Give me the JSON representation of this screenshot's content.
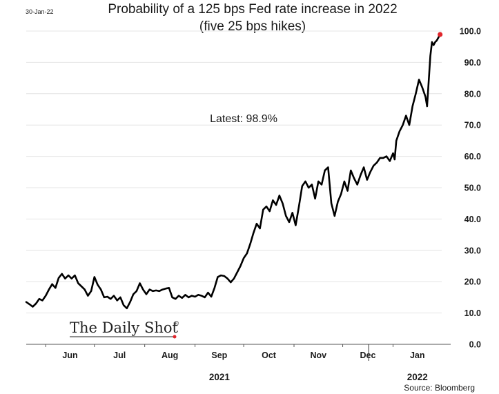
{
  "date_stamp": "30-Jan-22",
  "watermark": "The Daily Shot",
  "watermark_mark": "®",
  "source": "Source: Bloomberg",
  "colors": {
    "line": "#000000",
    "grid": "#e4e4e4",
    "latest_dot": "#e0262c",
    "axis": "#555555"
  },
  "chart_data": {
    "type": "line",
    "title": "Probability of a 125 bps Fed rate increase in 2022",
    "subtitle": "(five 25 bps hikes)",
    "annotation": "Latest:  98.9%",
    "latest_value": 98.9,
    "xlabel": "",
    "ylabel": "",
    "ylim": [
      0,
      100
    ],
    "yticks": [
      0,
      10,
      20,
      30,
      40,
      50,
      60,
      70,
      80,
      90,
      100
    ],
    "ytick_labels": [
      "0.0",
      "10.0",
      "20.0",
      "30.0",
      "40.0",
      "50.0",
      "60.0",
      "70.0",
      "80.0",
      "90.0",
      "100.0"
    ],
    "grid": true,
    "y_axis_position": "right",
    "xlim": [
      "2021-05-20",
      "2022-01-31"
    ],
    "month_ticks": [
      {
        "label": "Jun",
        "date": "2021-06-01"
      },
      {
        "label": "Jul",
        "date": "2021-07-01"
      },
      {
        "label": "Aug",
        "date": "2021-08-01"
      },
      {
        "label": "Sep",
        "date": "2021-09-01"
      },
      {
        "label": "Oct",
        "date": "2021-10-01"
      },
      {
        "label": "Nov",
        "date": "2021-11-01"
      },
      {
        "label": "Dec",
        "date": "2021-12-01"
      },
      {
        "label": "Jan",
        "date": "2022-01-01"
      }
    ],
    "year_labels": [
      {
        "label": "2021",
        "date": "2021-09-16"
      },
      {
        "label": "2022",
        "date": "2022-01-16"
      }
    ],
    "year_divider_date": "2021-12-17",
    "series": [
      {
        "points": [
          [
            "2021-05-20",
            13.5
          ],
          [
            "2021-05-22",
            12.8
          ],
          [
            "2021-05-24",
            12.0
          ],
          [
            "2021-05-26",
            13.0
          ],
          [
            "2021-05-28",
            14.5
          ],
          [
            "2021-05-30",
            14.0
          ],
          [
            "2021-06-01",
            15.5
          ],
          [
            "2021-06-03",
            17.5
          ],
          [
            "2021-06-05",
            19.2
          ],
          [
            "2021-06-07",
            18.0
          ],
          [
            "2021-06-09",
            21.2
          ],
          [
            "2021-06-11",
            22.5
          ],
          [
            "2021-06-13",
            21.0
          ],
          [
            "2021-06-15",
            22.0
          ],
          [
            "2021-06-17",
            21.0
          ],
          [
            "2021-06-19",
            22.0
          ],
          [
            "2021-06-21",
            19.5
          ],
          [
            "2021-06-23",
            18.5
          ],
          [
            "2021-06-25",
            17.5
          ],
          [
            "2021-06-27",
            15.5
          ],
          [
            "2021-06-29",
            17.0
          ],
          [
            "2021-07-01",
            21.5
          ],
          [
            "2021-07-03",
            19.0
          ],
          [
            "2021-07-05",
            17.5
          ],
          [
            "2021-07-07",
            15.0
          ],
          [
            "2021-07-09",
            15.2
          ],
          [
            "2021-07-11",
            14.5
          ],
          [
            "2021-07-13",
            15.5
          ],
          [
            "2021-07-15",
            14.0
          ],
          [
            "2021-07-17",
            15.0
          ],
          [
            "2021-07-19",
            12.5
          ],
          [
            "2021-07-21",
            11.5
          ],
          [
            "2021-07-23",
            13.5
          ],
          [
            "2021-07-25",
            16.0
          ],
          [
            "2021-07-27",
            17.0
          ],
          [
            "2021-07-29",
            19.5
          ],
          [
            "2021-07-31",
            17.5
          ],
          [
            "2021-08-02",
            16.0
          ],
          [
            "2021-08-04",
            17.5
          ],
          [
            "2021-08-06",
            17.0
          ],
          [
            "2021-08-08",
            17.2
          ],
          [
            "2021-08-10",
            17.0
          ],
          [
            "2021-08-12",
            17.5
          ],
          [
            "2021-08-14",
            17.8
          ],
          [
            "2021-08-16",
            18.0
          ],
          [
            "2021-08-18",
            15.0
          ],
          [
            "2021-08-20",
            14.5
          ],
          [
            "2021-08-22",
            15.5
          ],
          [
            "2021-08-24",
            14.8
          ],
          [
            "2021-08-26",
            15.8
          ],
          [
            "2021-08-28",
            15.0
          ],
          [
            "2021-08-30",
            15.5
          ],
          [
            "2021-09-01",
            15.2
          ],
          [
            "2021-09-03",
            15.8
          ],
          [
            "2021-09-05",
            15.5
          ],
          [
            "2021-09-07",
            15.0
          ],
          [
            "2021-09-09",
            16.5
          ],
          [
            "2021-09-11",
            15.2
          ],
          [
            "2021-09-13",
            18.0
          ],
          [
            "2021-09-15",
            21.5
          ],
          [
            "2021-09-17",
            22.0
          ],
          [
            "2021-09-19",
            21.8
          ],
          [
            "2021-09-21",
            21.0
          ],
          [
            "2021-09-23",
            19.8
          ],
          [
            "2021-09-25",
            21.0
          ],
          [
            "2021-09-27",
            23.0
          ],
          [
            "2021-09-29",
            25.0
          ],
          [
            "2021-10-01",
            27.5
          ],
          [
            "2021-10-03",
            29.0
          ],
          [
            "2021-10-05",
            32.0
          ],
          [
            "2021-10-07",
            35.5
          ],
          [
            "2021-10-09",
            38.5
          ],
          [
            "2021-10-11",
            37.0
          ],
          [
            "2021-10-13",
            43.0
          ],
          [
            "2021-10-15",
            44.0
          ],
          [
            "2021-10-17",
            42.5
          ],
          [
            "2021-10-19",
            46.0
          ],
          [
            "2021-10-21",
            44.5
          ],
          [
            "2021-10-23",
            47.5
          ],
          [
            "2021-10-25",
            45.0
          ],
          [
            "2021-10-27",
            41.0
          ],
          [
            "2021-10-29",
            39.0
          ],
          [
            "2021-10-31",
            42.0
          ],
          [
            "2021-11-02",
            38.0
          ],
          [
            "2021-11-04",
            44.0
          ],
          [
            "2021-11-06",
            50.5
          ],
          [
            "2021-11-08",
            52.0
          ],
          [
            "2021-11-10",
            50.0
          ],
          [
            "2021-11-12",
            51.0
          ],
          [
            "2021-11-14",
            46.5
          ],
          [
            "2021-11-16",
            52.0
          ],
          [
            "2021-11-18",
            51.0
          ],
          [
            "2021-11-20",
            55.5
          ],
          [
            "2021-11-22",
            56.5
          ],
          [
            "2021-11-24",
            45.0
          ],
          [
            "2021-11-26",
            41.0
          ],
          [
            "2021-11-28",
            45.5
          ],
          [
            "2021-11-30",
            48.0
          ],
          [
            "2021-12-02",
            52.0
          ],
          [
            "2021-12-04",
            49.0
          ],
          [
            "2021-12-06",
            55.5
          ],
          [
            "2021-12-08",
            53.0
          ],
          [
            "2021-12-10",
            51.0
          ],
          [
            "2021-12-12",
            54.0
          ],
          [
            "2021-12-14",
            56.5
          ],
          [
            "2021-12-16",
            52.5
          ],
          [
            "2021-12-18",
            55.0
          ],
          [
            "2021-12-20",
            57.0
          ],
          [
            "2021-12-22",
            58.0
          ],
          [
            "2021-12-24",
            59.5
          ],
          [
            "2021-12-26",
            59.5
          ],
          [
            "2021-12-28",
            60.0
          ],
          [
            "2021-12-30",
            58.5
          ],
          [
            "2022-01-01",
            61.0
          ],
          [
            "2022-01-02",
            59.0
          ],
          [
            "2022-01-03",
            65.0
          ],
          [
            "2022-01-05",
            68.0
          ],
          [
            "2022-01-07",
            70.0
          ],
          [
            "2022-01-09",
            73.0
          ],
          [
            "2022-01-11",
            70.0
          ],
          [
            "2022-01-13",
            76.0
          ],
          [
            "2022-01-15",
            80.0
          ],
          [
            "2022-01-17",
            84.5
          ],
          [
            "2022-01-19",
            82.0
          ],
          [
            "2022-01-21",
            79.0
          ],
          [
            "2022-01-22",
            76.0
          ],
          [
            "2022-01-24",
            92.0
          ],
          [
            "2022-01-25",
            96.5
          ],
          [
            "2022-01-26",
            95.5
          ],
          [
            "2022-01-27",
            96.5
          ],
          [
            "2022-01-28",
            97.0
          ],
          [
            "2022-01-30",
            98.9
          ]
        ]
      }
    ]
  }
}
